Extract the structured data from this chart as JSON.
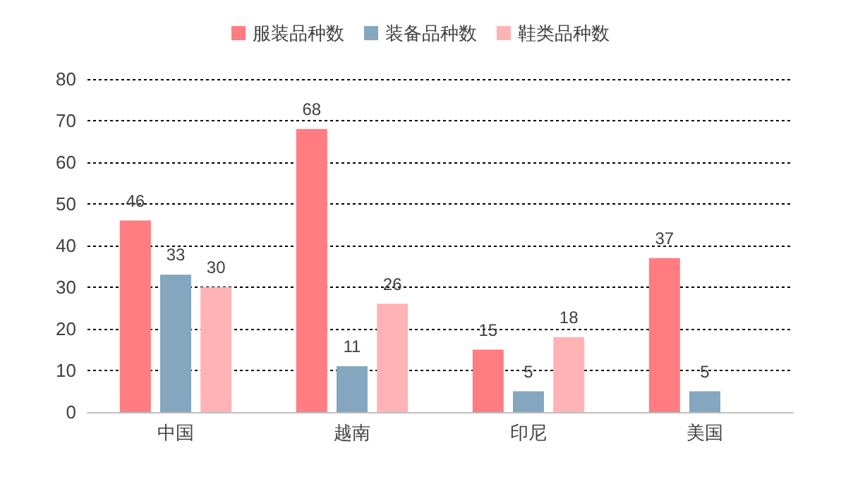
{
  "chart_data": {
    "type": "bar",
    "categories": [
      "中国",
      "越南",
      "印尼",
      "美国"
    ],
    "series": [
      {
        "name": "服装品种数",
        "color": "#ff7c80",
        "values": [
          46,
          68,
          15,
          37
        ]
      },
      {
        "name": "装备品种数",
        "color": "#84a7bf",
        "values": [
          33,
          11,
          5,
          5
        ]
      },
      {
        "name": "鞋类品种数",
        "color": "#ffb3b5",
        "values": [
          30,
          26,
          18,
          null
        ]
      }
    ],
    "ylim": [
      0,
      80
    ],
    "yticks": [
      0,
      10,
      20,
      30,
      40,
      50,
      60,
      70,
      80
    ],
    "grid": "y",
    "legend": "top",
    "data_labels": true
  }
}
